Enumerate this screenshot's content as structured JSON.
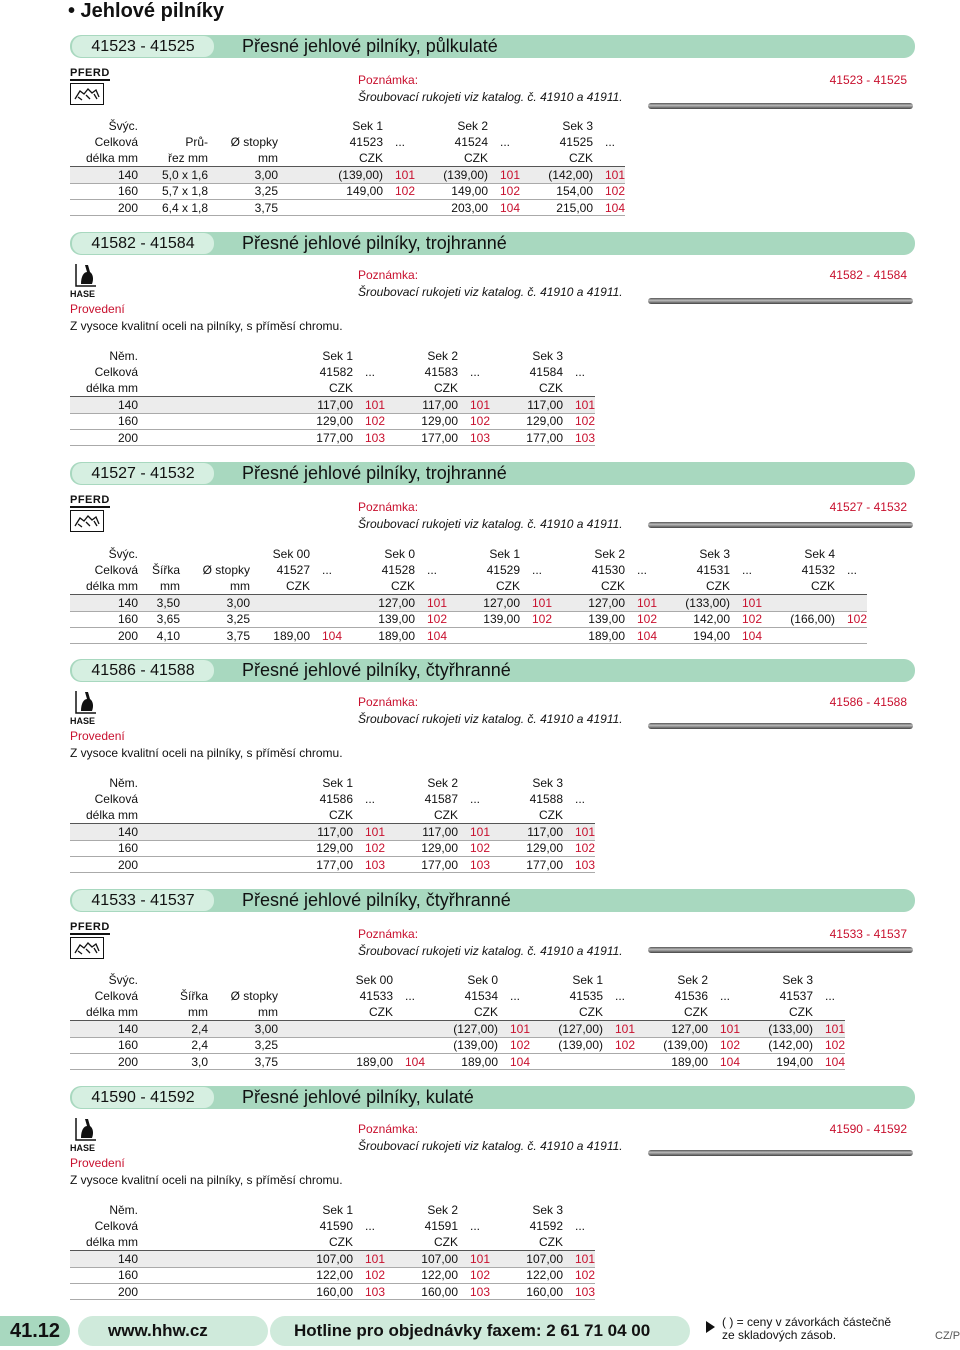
{
  "page_title": "• Jehlové pilníky",
  "note_label": "Poznámka:",
  "note_text": "Šroubovací rukojeti viz katalog. č. 41910 a 41911.",
  "prov_label": "Provedení",
  "prov_text": "Z vysoce kvalitní oceli na pilníky, s příměsí chromu.",
  "brand_pferd": "PFERD",
  "brand_hase": "HASE",
  "sections": [
    {
      "code": "41523 - 41525",
      "title": "Přesné jehlové pilníky, půlkulaté",
      "header_rows": [
        [
          "Švýc.",
          "",
          "",
          "",
          "Sek 1",
          "",
          "Sek 2",
          "",
          "Sek 3",
          ""
        ],
        [
          "Celková",
          "Prů-",
          "Ø stopky",
          "",
          "41523",
          "...",
          "41524",
          "...",
          "41525",
          "..."
        ],
        [
          "délka mm",
          "řez mm",
          "mm",
          "",
          "CZK",
          "",
          "CZK",
          "",
          "CZK",
          ""
        ]
      ],
      "rows": [
        [
          "140",
          "5,0 x 1,6",
          "3,00",
          "",
          "(139,00)",
          "101",
          "(139,00)",
          "101",
          "(142,00)",
          "101"
        ],
        [
          "160",
          "5,7 x 1,8",
          "3,25",
          "",
          "149,00",
          "102",
          "149,00",
          "102",
          "154,00",
          "102"
        ],
        [
          "200",
          "6,4 x 1,8",
          "3,75",
          "",
          "",
          "",
          "203,00",
          "104",
          "215,00",
          "104"
        ]
      ]
    },
    {
      "code": "41582 - 41584",
      "title": "Přesné jehlové pilníky, trojhranné",
      "header_rows": [
        [
          "Něm.",
          "",
          "",
          "",
          "Sek 1",
          "",
          "Sek 2",
          "",
          "Sek 3",
          ""
        ],
        [
          "Celková",
          "",
          "",
          "",
          "41582",
          "...",
          "41583",
          "...",
          "41584",
          "..."
        ],
        [
          "délka mm",
          "",
          "",
          "",
          "CZK",
          "",
          "CZK",
          "",
          "CZK",
          ""
        ]
      ],
      "rows": [
        [
          "140",
          "",
          "",
          "",
          "117,00",
          "101",
          "117,00",
          "101",
          "117,00",
          "101"
        ],
        [
          "160",
          "",
          "",
          "",
          "129,00",
          "102",
          "129,00",
          "102",
          "129,00",
          "102"
        ],
        [
          "200",
          "",
          "",
          "",
          "177,00",
          "103",
          "177,00",
          "103",
          "177,00",
          "103"
        ]
      ]
    },
    {
      "code": "41527 - 41532",
      "title": "Přesné jehlové pilníky, trojhranné",
      "header_rows": [
        [
          "Švýc.",
          "",
          "",
          "Sek 00",
          "",
          "Sek 0",
          "",
          "Sek 1",
          "",
          "Sek 2",
          "",
          "Sek 3",
          "",
          "Sek 4",
          ""
        ],
        [
          "Celková",
          "Šířka",
          "Ø stopky",
          "41527",
          "...",
          "41528",
          "...",
          "41529",
          "...",
          "41530",
          "...",
          "41531",
          "...",
          "41532",
          "..."
        ],
        [
          "délka mm",
          "mm",
          "mm",
          "CZK",
          "",
          "CZK",
          "",
          "CZK",
          "",
          "CZK",
          "",
          "CZK",
          "",
          "CZK",
          ""
        ]
      ],
      "rows": [
        [
          "140",
          "3,50",
          "3,00",
          "",
          "",
          "127,00",
          "101",
          "127,00",
          "101",
          "127,00",
          "101",
          "(133,00)",
          "101",
          "",
          ""
        ],
        [
          "160",
          "3,65",
          "3,25",
          "",
          "",
          "139,00",
          "102",
          "139,00",
          "102",
          "139,00",
          "102",
          "142,00",
          "102",
          "(166,00)",
          "102"
        ],
        [
          "200",
          "4,10",
          "3,75",
          "189,00",
          "104",
          "189,00",
          "104",
          "",
          "",
          "189,00",
          "104",
          "194,00",
          "104",
          "",
          ""
        ]
      ]
    },
    {
      "code": "41586 - 41588",
      "title": "Přesné jehlové pilníky, čtyřhranné",
      "header_rows": [
        [
          "Něm.",
          "",
          "",
          "",
          "Sek 1",
          "",
          "Sek 2",
          "",
          "Sek 3",
          ""
        ],
        [
          "Celková",
          "",
          "",
          "",
          "41586",
          "...",
          "41587",
          "...",
          "41588",
          "..."
        ],
        [
          "délka mm",
          "",
          "",
          "",
          "CZK",
          "",
          "CZK",
          "",
          "CZK",
          ""
        ]
      ],
      "rows": [
        [
          "140",
          "",
          "",
          "",
          "117,00",
          "101",
          "117,00",
          "101",
          "117,00",
          "101"
        ],
        [
          "160",
          "",
          "",
          "",
          "129,00",
          "102",
          "129,00",
          "102",
          "129,00",
          "102"
        ],
        [
          "200",
          "",
          "",
          "",
          "177,00",
          "103",
          "177,00",
          "103",
          "177,00",
          "103"
        ]
      ]
    },
    {
      "code": "41533 - 41537",
      "title": "Přesné jehlové pilníky, čtyřhranné",
      "header_rows": [
        [
          "Švýc.",
          "",
          "",
          "",
          "",
          "Sek 00",
          "",
          "Sek 0",
          "",
          "Sek 1",
          "",
          "Sek 2",
          "",
          "Sek 3",
          ""
        ],
        [
          "Celková",
          "Šířka",
          "Ø stopky",
          "",
          "",
          "41533",
          "...",
          "41534",
          "...",
          "41535",
          "...",
          "41536",
          "...",
          "41537",
          "..."
        ],
        [
          "délka mm",
          "mm",
          "mm",
          "",
          "",
          "CZK",
          "",
          "CZK",
          "",
          "CZK",
          "",
          "CZK",
          "",
          "CZK",
          ""
        ]
      ],
      "rows": [
        [
          "140",
          "2,4",
          "3,00",
          "",
          "",
          "",
          "",
          "(127,00)",
          "101",
          "(127,00)",
          "101",
          "127,00",
          "101",
          "(133,00)",
          "101"
        ],
        [
          "160",
          "2,4",
          "3,25",
          "",
          "",
          "",
          "",
          "(139,00)",
          "102",
          "(139,00)",
          "102",
          "(139,00)",
          "102",
          "(142,00)",
          "102"
        ],
        [
          "200",
          "3,0",
          "3,75",
          "",
          "",
          "189,00",
          "104",
          "189,00",
          "104",
          "",
          "",
          "189,00",
          "104",
          "194,00",
          "104"
        ]
      ]
    },
    {
      "code": "41590 - 41592",
      "title": "Přesné jehlové pilníky, kulaté",
      "header_rows": [
        [
          "Něm.",
          "",
          "",
          "",
          "Sek 1",
          "",
          "Sek 2",
          "",
          "Sek 3",
          ""
        ],
        [
          "Celková",
          "",
          "",
          "",
          "41590",
          "...",
          "41591",
          "...",
          "41592",
          "..."
        ],
        [
          "délka mm",
          "",
          "",
          "",
          "CZK",
          "",
          "CZK",
          "",
          "CZK",
          ""
        ]
      ],
      "rows": [
        [
          "140",
          "",
          "",
          "",
          "107,00",
          "101",
          "107,00",
          "101",
          "107,00",
          "101"
        ],
        [
          "160",
          "",
          "",
          "",
          "122,00",
          "102",
          "122,00",
          "102",
          "122,00",
          "102"
        ],
        [
          "200",
          "",
          "",
          "",
          "160,00",
          "103",
          "160,00",
          "103",
          "160,00",
          "103"
        ]
      ]
    }
  ],
  "footer": {
    "page": "41.12",
    "web": "www.hhw.cz",
    "hotline": "Hotline pro objednávky faxem: 2 61 71 04 00",
    "note_line1": "( ) = ceny v závorkách částečně",
    "note_line2": "ze skladových zásob.",
    "lang": "CZ/P"
  }
}
